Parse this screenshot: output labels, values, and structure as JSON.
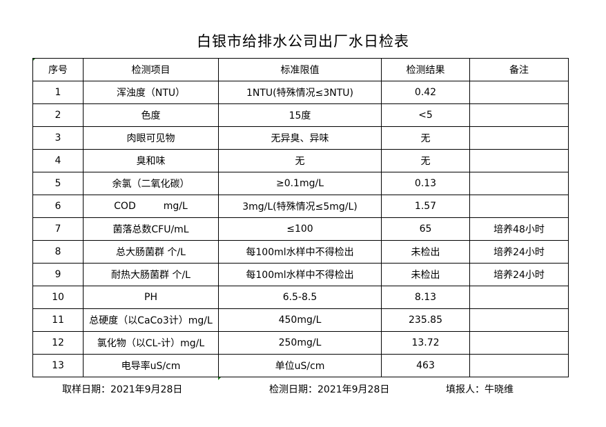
{
  "title": "白银市给排水公司出厂水日检表",
  "headers": [
    "序号",
    "检测项目",
    "标准限值",
    "检测结果",
    "备注"
  ],
  "rows": [
    [
      "1",
      "浑浊度（NTU）",
      "1NTU(特殊情况≤3NTU)",
      "0.42",
      ""
    ],
    [
      "2",
      "色度",
      "15度",
      "<5",
      ""
    ],
    [
      "3",
      "肉眼可见物",
      "无异臭、异味",
      "无",
      ""
    ],
    [
      "4",
      "臭和味",
      "无",
      "无",
      ""
    ],
    [
      "5",
      "余氯（二氧化碳）",
      "≥0.1mg/L",
      "0.13",
      ""
    ],
    [
      "6",
      "COD         mg/L",
      "3mg/L(特殊情况≤5mg/L)",
      "1.57",
      ""
    ],
    [
      "7",
      "菌落总数CFU/mL",
      "≤100",
      "65",
      "培养48小时"
    ],
    [
      "8",
      "总大肠菌群 个/L",
      "每100ml水样中不得检出",
      "未检出",
      "培养24小时"
    ],
    [
      "9",
      "耐热大肠菌群 个/L",
      "每100ml水样中不得检出",
      "未检出",
      "培养24小时"
    ],
    [
      "10",
      "PH",
      "6.5-8.5",
      "8.13",
      ""
    ],
    [
      "11",
      "总硬度（以CaCo3计）mg/L",
      "450mg/L",
      "235.85",
      ""
    ],
    [
      "12",
      "氯化物（以CL-计）mg/L",
      "250mg/L",
      "13.72",
      ""
    ],
    [
      "13",
      "电导率uS/cm",
      "单位uS/cm",
      "463",
      ""
    ]
  ],
  "footer": {
    "sampling_date": "取样日期：2021年9月28日",
    "test_date": "检测日期：2021年9月28日",
    "reporter": "填报人：牛晓维"
  }
}
